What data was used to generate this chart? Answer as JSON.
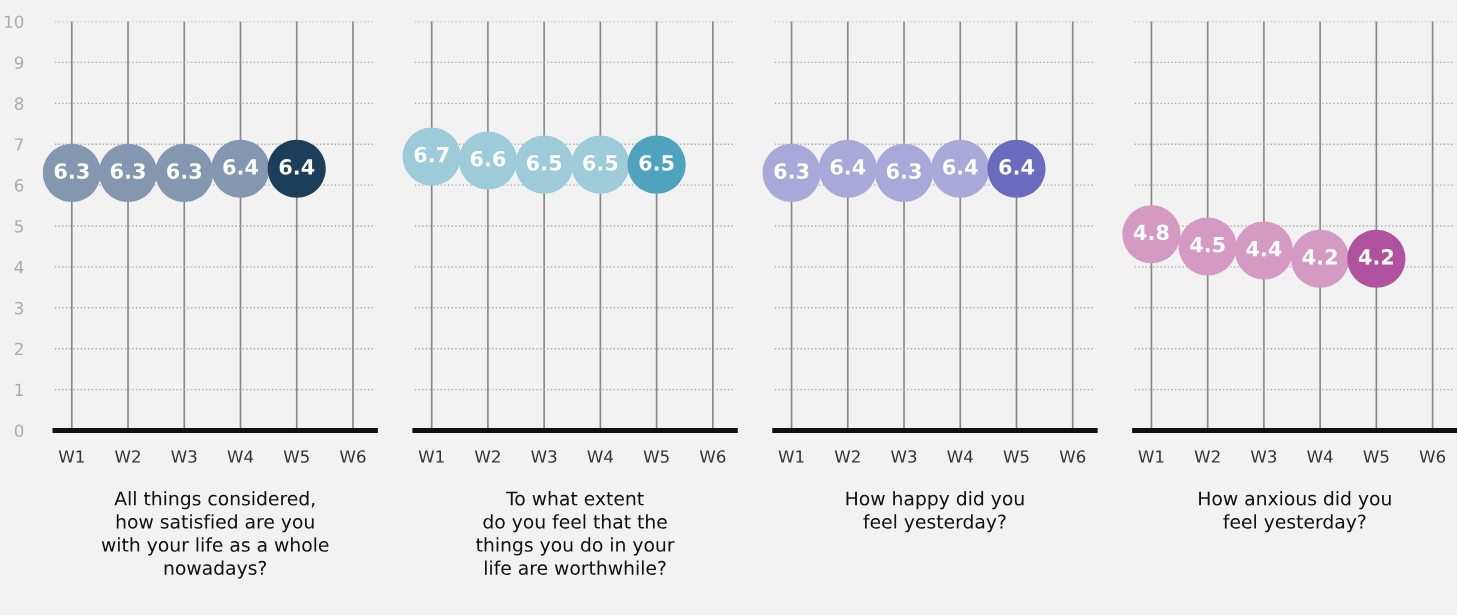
{
  "chart_data": [
    {
      "type": "scatter",
      "xlabel": "All things considered,\nhow satisfied are you\nwith your life as a whole\nnowadays?",
      "categories": [
        "W1",
        "W2",
        "W3",
        "W4",
        "W5",
        "W6"
      ],
      "series": [
        {
          "colors": [
            "#8497b0",
            "#8497b0",
            "#8497b0",
            "#8497b0",
            "#1b3f5a",
            null
          ],
          "values": [
            6.3,
            6.3,
            6.3,
            6.4,
            6.4,
            null
          ]
        }
      ],
      "ylim": [
        0,
        10
      ],
      "yticks": [
        0,
        1,
        2,
        3,
        4,
        5,
        6,
        7,
        8,
        9,
        10
      ],
      "grid": true,
      "data_labels": true,
      "marker": "circle"
    },
    {
      "type": "scatter",
      "xlabel": "To what extent\ndo you feel that the\nthings you do in your\nlife are worthwhile?",
      "categories": [
        "W1",
        "W2",
        "W3",
        "W4",
        "W5",
        "W6"
      ],
      "series": [
        {
          "colors": [
            "#9dcbd9",
            "#9dcbd9",
            "#9dcbd9",
            "#9dcbd9",
            "#4fa3bf",
            null
          ],
          "values": [
            6.7,
            6.6,
            6.5,
            6.5,
            6.5,
            null
          ]
        }
      ],
      "ylim": [
        0,
        10
      ],
      "yticks": [
        0,
        1,
        2,
        3,
        4,
        5,
        6,
        7,
        8,
        9,
        10
      ],
      "grid": true,
      "data_labels": true,
      "marker": "circle",
      "tick_labels": "x"
    },
    {
      "type": "scatter",
      "xlabel": "How happy did you\nfeel yesterday?",
      "categories": [
        "W1",
        "W2",
        "W3",
        "W4",
        "W5",
        "W6"
      ],
      "series": [
        {
          "colors": [
            "#a9a9d9",
            "#a9a9d9",
            "#a9a9d9",
            "#a9a9d9",
            "#6a6abf",
            null
          ],
          "values": [
            6.3,
            6.4,
            6.3,
            6.4,
            6.4,
            null
          ]
        }
      ],
      "ylim": [
        0,
        10
      ],
      "yticks": [
        0,
        1,
        2,
        3,
        4,
        5,
        6,
        7,
        8,
        9,
        10
      ],
      "grid": true,
      "data_labels": true,
      "marker": "circle",
      "tick_labels": "x"
    },
    {
      "type": "scatter",
      "xlabel": "How anxious did you\nfeel yesterday?",
      "categories": [
        "W1",
        "W2",
        "W3",
        "W4",
        "W5",
        "W6"
      ],
      "series": [
        {
          "colors": [
            "#d49ac4",
            "#d49ac4",
            "#d49ac4",
            "#d49ac4",
            "#b0529e",
            null
          ],
          "values": [
            4.8,
            4.5,
            4.4,
            4.2,
            4.2,
            null
          ]
        }
      ],
      "ylim": [
        0,
        10
      ],
      "yticks": [
        0,
        1,
        2,
        3,
        4,
        5,
        6,
        7,
        8,
        9,
        10
      ],
      "grid": true,
      "data_labels": true,
      "marker": "circle",
      "tick_labels": "x"
    }
  ]
}
